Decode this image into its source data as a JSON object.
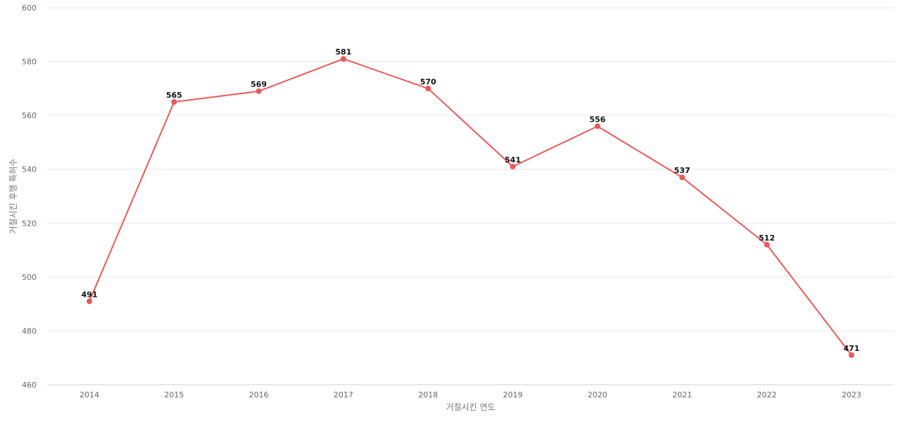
{
  "chart_data": {
    "type": "line",
    "xlabel": "거절시킨 연도",
    "ylabel": "거절시킨 후행 특허수",
    "ylim": [
      460,
      600
    ],
    "yticks": [
      460,
      480,
      500,
      520,
      540,
      560,
      580,
      600
    ],
    "grid": true,
    "legend": "none",
    "categories": [
      "2014",
      "2015",
      "2016",
      "2017",
      "2018",
      "2019",
      "2020",
      "2021",
      "2022",
      "2023"
    ],
    "series": [
      {
        "values": [
          491,
          565,
          569,
          581,
          570,
          541,
          556,
          537,
          512,
          471
        ],
        "color": "#e8595a"
      }
    ]
  }
}
